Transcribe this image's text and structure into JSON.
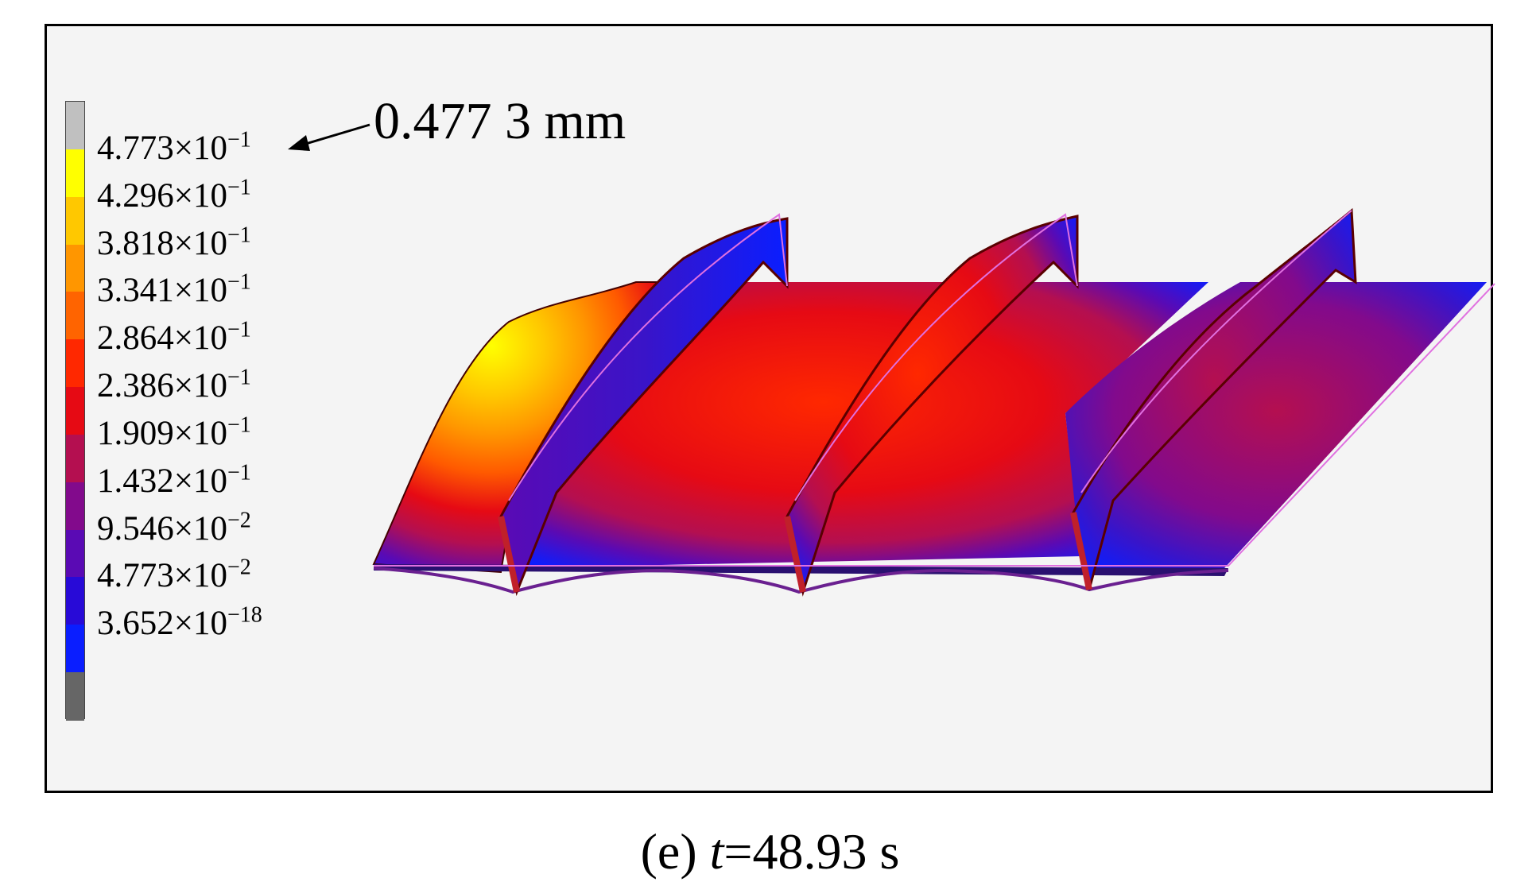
{
  "legend": {
    "entries": [
      {
        "mantissa": "4.773",
        "exponent": "−1",
        "color": "#ffff00"
      },
      {
        "mantissa": "4.296",
        "exponent": "−1",
        "color": "#ffc800"
      },
      {
        "mantissa": "3.818",
        "exponent": "−1",
        "color": "#ff9600"
      },
      {
        "mantissa": "3.341",
        "exponent": "−1",
        "color": "#ff6400"
      },
      {
        "mantissa": "2.864",
        "exponent": "−1",
        "color": "#ff2800"
      },
      {
        "mantissa": "2.386",
        "exponent": "−1",
        "color": "#e60a14"
      },
      {
        "mantissa": "1.909",
        "exponent": "−1",
        "color": "#b40f50"
      },
      {
        "mantissa": "1.432",
        "exponent": "−1",
        "color": "#820a8c"
      },
      {
        "mantissa": "9.546",
        "exponent": "−2",
        "color": "#5a0ab4"
      },
      {
        "mantissa": "4.773",
        "exponent": "−2",
        "color": "#280ad7"
      },
      {
        "mantissa": "3.652",
        "exponent": "−18",
        "color": "#0a1eff"
      }
    ],
    "top_color": "#c0c0c0",
    "bottom_color": "#666666"
  },
  "annotation": "0.477 3 mm",
  "caption": {
    "label": "(e) ",
    "variable": "t",
    "value": "=48.93 s"
  }
}
